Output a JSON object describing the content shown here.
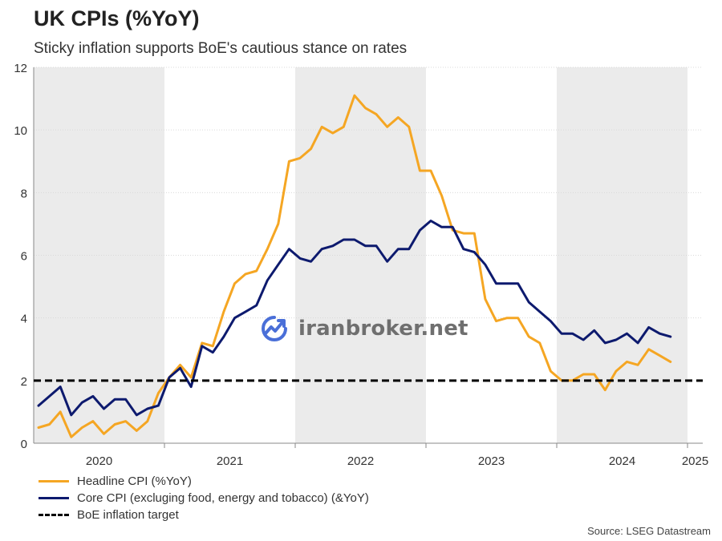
{
  "title": "UK CPIs (%YoY)",
  "subtitle": "Sticky inflation supports BoE's cautious stance on rates",
  "source": "Source: LSEG Datastream",
  "watermark": "iranbroker.net",
  "colors": {
    "headline": "#f5a623",
    "core": "#0d1a6e",
    "target": "#000000",
    "band": "#ebebeb",
    "grid": "#d9d9d9"
  },
  "chart_data": {
    "type": "line",
    "x_start": "2020-01",
    "x_labels": [
      "2020",
      "2021",
      "2022",
      "2023",
      "2024",
      "2025"
    ],
    "ylim": [
      0,
      12
    ],
    "yticks": [
      "0",
      "2",
      "4",
      "6",
      "8",
      "10",
      "12"
    ],
    "grid": true,
    "shaded_years": [
      "2020",
      "2022",
      "2024"
    ],
    "legend_position": "bottom-left",
    "series": [
      {
        "name": "Headline CPI (%YoY)",
        "key": "headline",
        "values": [
          0.5,
          0.6,
          1.0,
          0.2,
          0.5,
          0.7,
          0.3,
          0.6,
          0.7,
          0.4,
          0.7,
          1.6,
          2.1,
          2.5,
          2.1,
          3.2,
          3.1,
          4.2,
          5.1,
          5.4,
          5.5,
          6.2,
          7.0,
          9.0,
          9.1,
          9.4,
          10.1,
          9.9,
          10.1,
          11.1,
          10.7,
          10.5,
          10.1,
          10.4,
          10.1,
          8.7,
          8.7,
          7.9,
          6.8,
          6.7,
          6.7,
          4.6,
          3.9,
          4.0,
          4.0,
          3.4,
          3.2,
          2.3,
          2.0,
          2.0,
          2.2,
          2.2,
          1.7,
          2.3,
          2.6,
          2.5,
          3.0,
          2.8,
          2.6
        ]
      },
      {
        "name": "Core CPI (excluging food, energy and tobacco) (&YoY)",
        "key": "core",
        "values": [
          1.2,
          1.5,
          1.8,
          0.9,
          1.3,
          1.5,
          1.1,
          1.4,
          1.4,
          0.9,
          1.1,
          1.2,
          2.1,
          2.4,
          1.8,
          3.1,
          2.9,
          3.4,
          4.0,
          4.2,
          4.4,
          5.2,
          5.7,
          6.2,
          5.9,
          5.8,
          6.2,
          6.3,
          6.5,
          6.5,
          6.3,
          6.3,
          5.8,
          6.2,
          6.2,
          6.8,
          7.1,
          6.9,
          6.9,
          6.2,
          6.1,
          5.7,
          5.1,
          5.1,
          5.1,
          4.5,
          4.2,
          3.9,
          3.5,
          3.5,
          3.3,
          3.6,
          3.2,
          3.3,
          3.5,
          3.2,
          3.7,
          3.5,
          3.4
        ]
      },
      {
        "name": "BoE inflation target",
        "key": "target",
        "value": 2
      }
    ]
  }
}
